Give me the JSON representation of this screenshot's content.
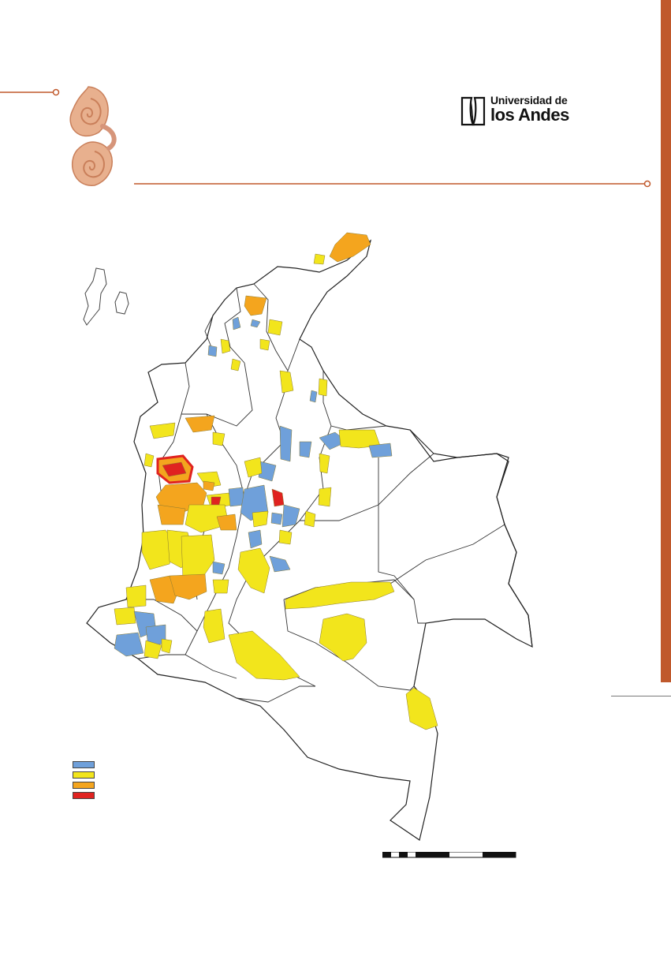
{
  "logo": {
    "line1": "Universidad de",
    "line2": "los Andes"
  },
  "colors": {
    "accent": "#c0592c",
    "category_1": "#6fa0da",
    "category_2": "#f2e51c",
    "category_3": "#f4a51e",
    "category_4": "#e02320"
  },
  "legend": {
    "items": [
      {
        "color": "#6fa0da",
        "label": ""
      },
      {
        "color": "#f2e51c",
        "label": ""
      },
      {
        "color": "#f4a51e",
        "label": ""
      },
      {
        "color": "#e02320",
        "label": ""
      }
    ]
  }
}
